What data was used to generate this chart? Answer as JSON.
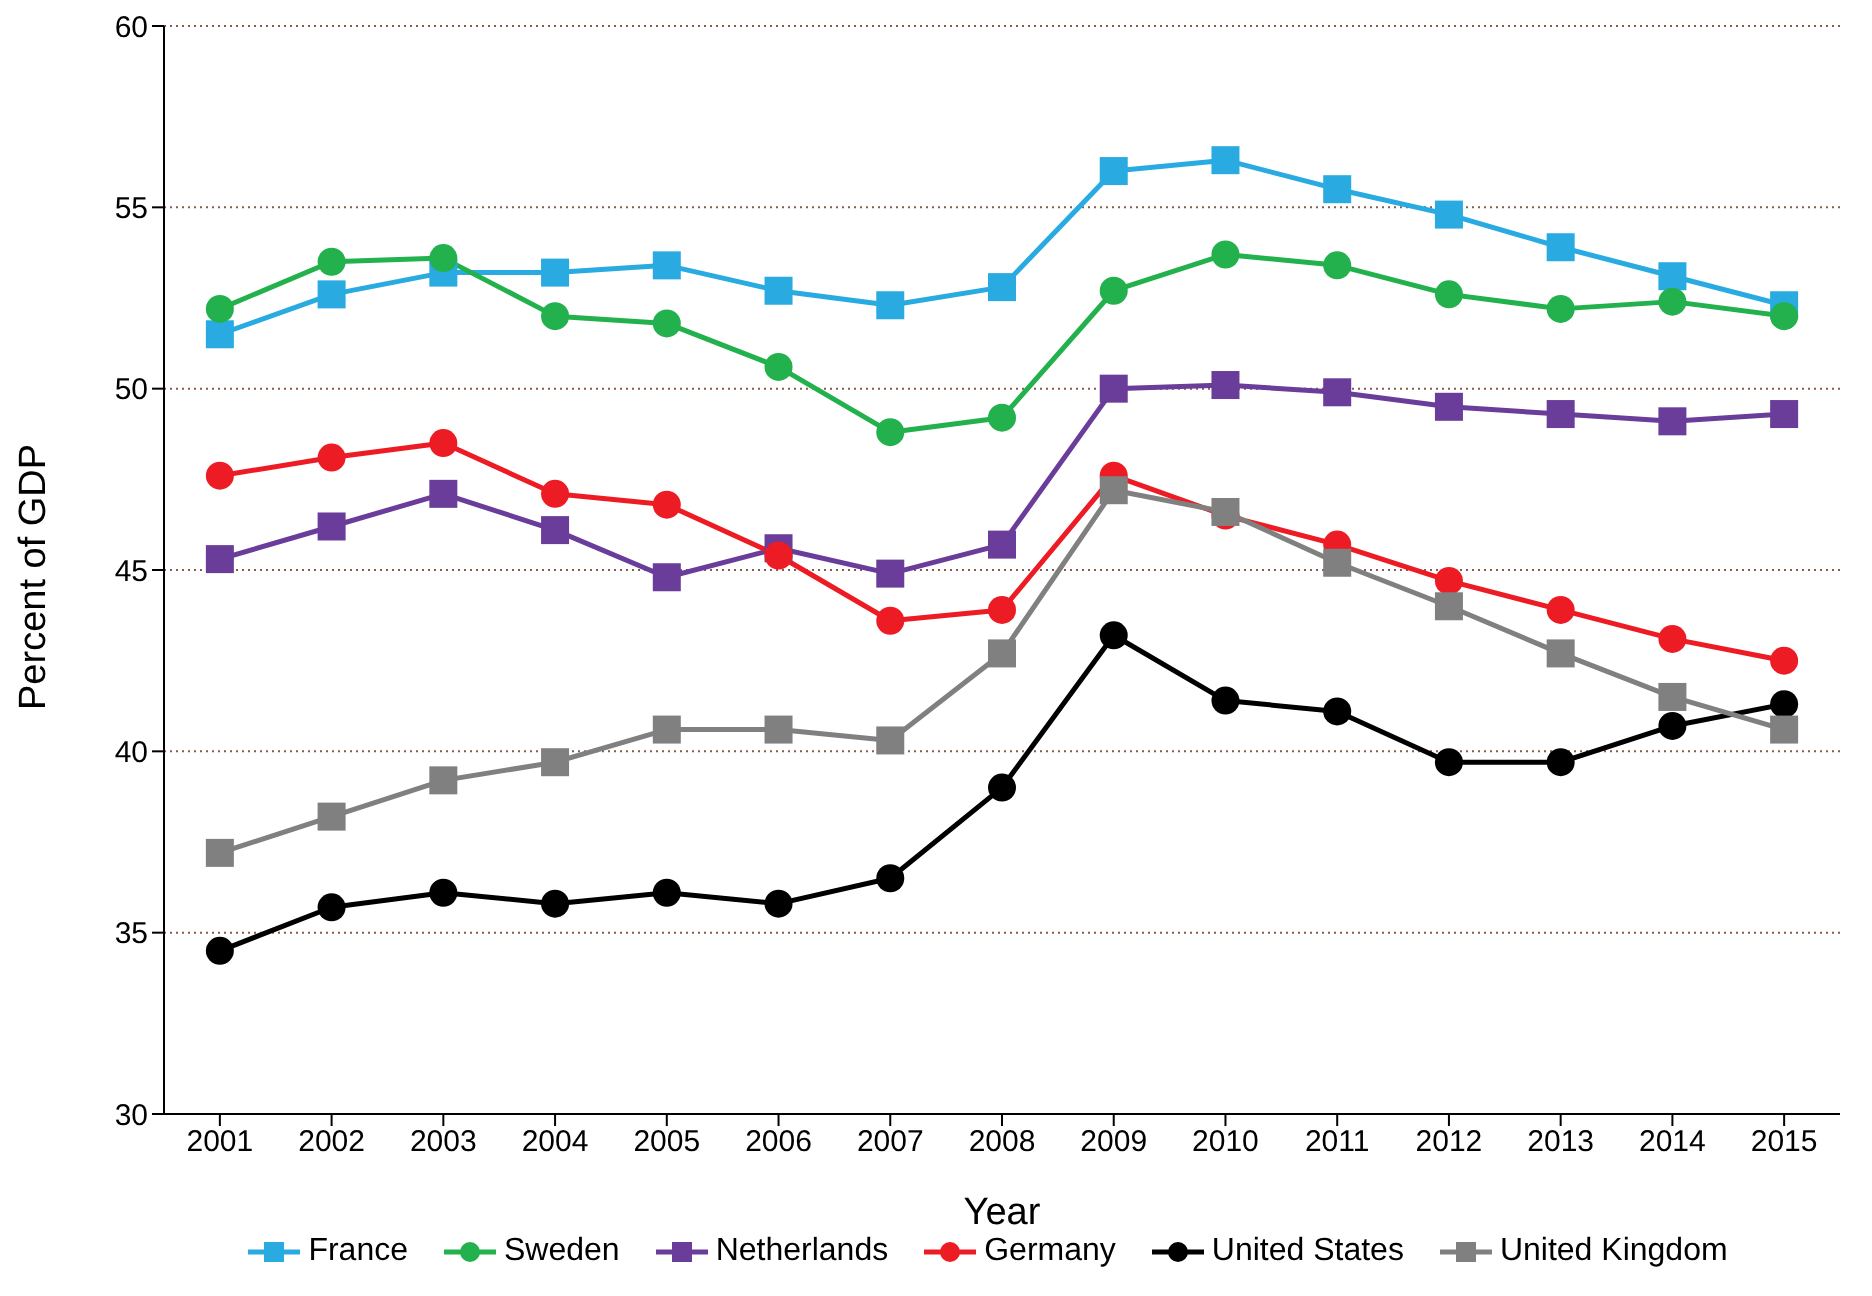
{
  "chart_data": {
    "type": "line",
    "xlabel": "Year",
    "ylabel": "Percent of GDP",
    "categories": [
      "2001",
      "2002",
      "2003",
      "2004",
      "2005",
      "2006",
      "2007",
      "2008",
      "2009",
      "2010",
      "2011",
      "2012",
      "2013",
      "2014",
      "2015"
    ],
    "series": [
      {
        "name": "France",
        "color": "#29abe2",
        "marker": "square",
        "values": [
          51.5,
          52.6,
          53.2,
          53.2,
          53.4,
          52.7,
          52.3,
          52.8,
          56.0,
          56.3,
          55.5,
          54.8,
          53.9,
          53.1,
          52.3
        ]
      },
      {
        "name": "Sweden",
        "color": "#22b14c",
        "marker": "circle",
        "values": [
          52.2,
          53.5,
          53.6,
          52.0,
          51.8,
          50.6,
          48.8,
          49.2,
          52.7,
          53.7,
          53.4,
          52.6,
          52.2,
          52.4,
          52.0
        ]
      },
      {
        "name": "Netherlands",
        "color": "#6a3d9a",
        "marker": "square",
        "values": [
          45.3,
          46.2,
          47.1,
          46.1,
          44.8,
          45.6,
          44.9,
          45.7,
          50.0,
          50.1,
          49.9,
          49.5,
          49.3,
          49.1,
          49.3
        ]
      },
      {
        "name": "Germany",
        "color": "#ed1c24",
        "marker": "circle",
        "values": [
          47.6,
          48.1,
          48.5,
          47.1,
          46.8,
          45.4,
          43.6,
          43.9,
          47.6,
          46.5,
          45.7,
          44.7,
          43.9,
          43.1,
          42.5
        ]
      },
      {
        "name": "United States",
        "color": "#000000",
        "marker": "circle",
        "values": [
          34.5,
          35.7,
          36.1,
          35.8,
          36.1,
          35.8,
          36.5,
          39.0,
          43.2,
          41.4,
          41.1,
          39.7,
          39.7,
          40.7,
          41.3
        ]
      },
      {
        "name": "United Kingdom",
        "color": "#808080",
        "marker": "square",
        "values": [
          37.2,
          38.2,
          39.2,
          39.7,
          40.6,
          40.6,
          40.3,
          42.7,
          47.2,
          46.6,
          45.2,
          44.0,
          42.7,
          41.5,
          40.6
        ]
      }
    ],
    "ylim": [
      30,
      60
    ],
    "yticks": [
      30,
      35,
      40,
      45,
      50,
      55,
      60
    ],
    "grid": "y",
    "legend": "bottom",
    "line_style": "solid"
  }
}
